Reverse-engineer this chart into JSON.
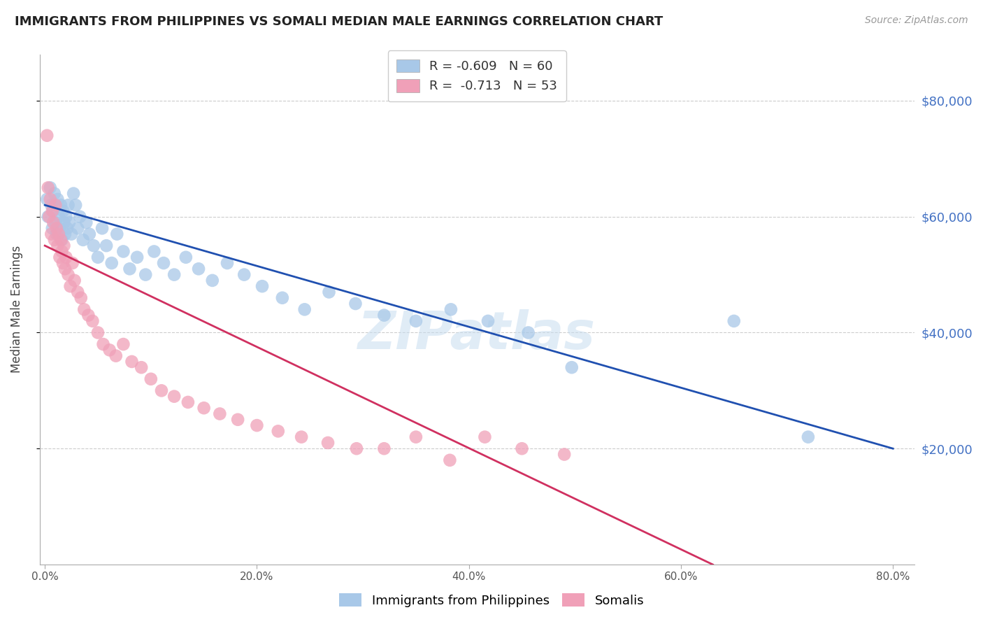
{
  "title": "IMMIGRANTS FROM PHILIPPINES VS SOMALI MEDIAN MALE EARNINGS CORRELATION CHART",
  "source": "Source: ZipAtlas.com",
  "ylabel": "Median Male Earnings",
  "xlabel_ticks": [
    "0.0%",
    "20.0%",
    "40.0%",
    "60.0%",
    "80.0%"
  ],
  "xlabel_vals": [
    0.0,
    0.2,
    0.4,
    0.6,
    0.8
  ],
  "ytick_labels": [
    "$20,000",
    "$40,000",
    "$60,000",
    "$80,000"
  ],
  "ytick_vals": [
    20000,
    40000,
    60000,
    80000
  ],
  "ylim": [
    0,
    88000
  ],
  "xlim": [
    -0.005,
    0.82
  ],
  "legend_label_blue": "R = -0.609   N = 60",
  "legend_label_pink": "R =  -0.713   N = 53",
  "legend_label1": "Immigrants from Philippines",
  "legend_label2": "Somalis",
  "color_blue": "#a8c8e8",
  "color_pink": "#f0a0b8",
  "line_color_blue": "#2050b0",
  "line_color_pink": "#d03060",
  "watermark": "ZIPatlas",
  "philippines_x": [
    0.002,
    0.003,
    0.005,
    0.006,
    0.007,
    0.008,
    0.009,
    0.01,
    0.011,
    0.012,
    0.013,
    0.014,
    0.015,
    0.016,
    0.017,
    0.018,
    0.019,
    0.02,
    0.021,
    0.022,
    0.023,
    0.025,
    0.027,
    0.029,
    0.031,
    0.033,
    0.036,
    0.039,
    0.042,
    0.046,
    0.05,
    0.054,
    0.058,
    0.063,
    0.068,
    0.074,
    0.08,
    0.087,
    0.095,
    0.103,
    0.112,
    0.122,
    0.133,
    0.145,
    0.158,
    0.172,
    0.188,
    0.205,
    0.224,
    0.245,
    0.268,
    0.293,
    0.32,
    0.35,
    0.383,
    0.418,
    0.456,
    0.497,
    0.65,
    0.72
  ],
  "philippines_y": [
    63000,
    60000,
    65000,
    62000,
    58000,
    61000,
    64000,
    59000,
    57000,
    63000,
    60000,
    58000,
    62000,
    56000,
    61000,
    59000,
    57000,
    60000,
    58000,
    62000,
    59000,
    57000,
    64000,
    62000,
    58000,
    60000,
    56000,
    59000,
    57000,
    55000,
    53000,
    58000,
    55000,
    52000,
    57000,
    54000,
    51000,
    53000,
    50000,
    54000,
    52000,
    50000,
    53000,
    51000,
    49000,
    52000,
    50000,
    48000,
    46000,
    44000,
    47000,
    45000,
    43000,
    42000,
    44000,
    42000,
    40000,
    34000,
    42000,
    22000
  ],
  "somali_x": [
    0.002,
    0.003,
    0.004,
    0.005,
    0.006,
    0.007,
    0.008,
    0.009,
    0.01,
    0.011,
    0.012,
    0.013,
    0.014,
    0.015,
    0.016,
    0.017,
    0.018,
    0.019,
    0.02,
    0.022,
    0.024,
    0.026,
    0.028,
    0.031,
    0.034,
    0.037,
    0.041,
    0.045,
    0.05,
    0.055,
    0.061,
    0.067,
    0.074,
    0.082,
    0.091,
    0.1,
    0.11,
    0.122,
    0.135,
    0.15,
    0.165,
    0.182,
    0.2,
    0.22,
    0.242,
    0.267,
    0.294,
    0.32,
    0.35,
    0.382,
    0.415,
    0.45,
    0.49
  ],
  "somali_y": [
    74000,
    65000,
    60000,
    63000,
    57000,
    61000,
    59000,
    56000,
    62000,
    58000,
    55000,
    57000,
    53000,
    56000,
    54000,
    52000,
    55000,
    51000,
    53000,
    50000,
    48000,
    52000,
    49000,
    47000,
    46000,
    44000,
    43000,
    42000,
    40000,
    38000,
    37000,
    36000,
    38000,
    35000,
    34000,
    32000,
    30000,
    29000,
    28000,
    27000,
    26000,
    25000,
    24000,
    23000,
    22000,
    21000,
    20000,
    20000,
    22000,
    18000,
    22000,
    20000,
    19000
  ],
  "blue_line_x0": 0.0,
  "blue_line_y0": 62000,
  "blue_line_x1": 0.8,
  "blue_line_y1": 20000,
  "pink_line_x0": 0.0,
  "pink_line_y0": 55000,
  "pink_line_x1": 0.63,
  "pink_line_y1": 0
}
